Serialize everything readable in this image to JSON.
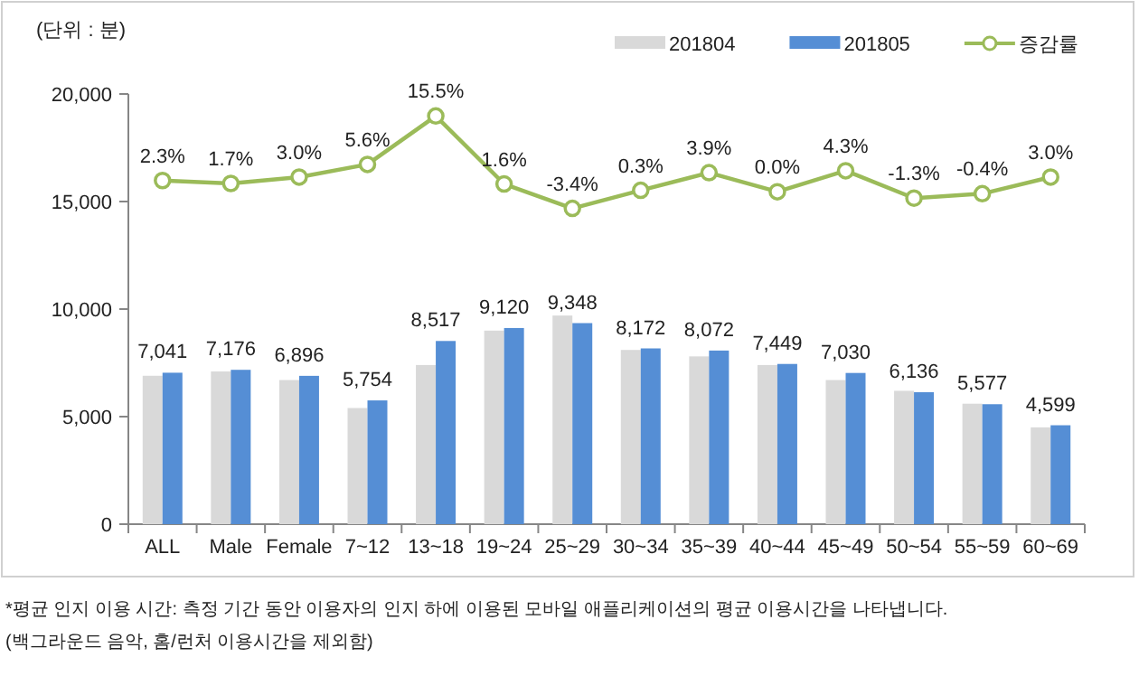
{
  "chart_data": {
    "type": "bar",
    "ylabel": "(단위 : 분)",
    "categories": [
      "ALL",
      "Male",
      "Female",
      "7~12",
      "13~18",
      "19~24",
      "25~29",
      "30~34",
      "35~39",
      "40~44",
      "45~49",
      "50~54",
      "55~59",
      "60~69"
    ],
    "series": [
      {
        "name": "201804",
        "color": "#d9d9d9",
        "values": [
          6900,
          7100,
          6700,
          5400,
          7400,
          9000,
          9700,
          8100,
          7800,
          7400,
          6700,
          6200,
          5600,
          4500
        ]
      },
      {
        "name": "201805",
        "color": "#558ed5",
        "values": [
          7041,
          7176,
          6896,
          5754,
          8517,
          9120,
          9348,
          8172,
          8072,
          7449,
          7030,
          6136,
          5577,
          4599
        ],
        "value_labels": [
          "7,041",
          "7,176",
          "6,896",
          "5,754",
          "8,517",
          "9,120",
          "9,348",
          "8,172",
          "8,072",
          "7,449",
          "7,030",
          "6,136",
          "5,577",
          "4,599"
        ]
      },
      {
        "name": "증감률",
        "type": "line",
        "axis": "y2",
        "color": "#9bbb59",
        "marker": "circle",
        "values": [
          2.3,
          1.7,
          3.0,
          5.6,
          15.5,
          1.6,
          -3.4,
          0.3,
          3.9,
          0.0,
          4.3,
          -1.3,
          -0.4,
          3.0
        ],
        "value_labels": [
          "2.3%",
          "1.7%",
          "3.0%",
          "5.6%",
          "15.5%",
          "1.6%",
          "-3.4%",
          "0.3%",
          "3.9%",
          "0.0%",
          "4.3%",
          "-1.3%",
          "-0.4%",
          "3.0%"
        ]
      }
    ],
    "ylim": [
      0,
      20000
    ],
    "yticks": [
      {
        "value": 0,
        "label": "0"
      },
      {
        "value": 5000,
        "label": "5,000"
      },
      {
        "value": 10000,
        "label": "10,000"
      },
      {
        "value": 15000,
        "label": "15,000"
      },
      {
        "value": 20000,
        "label": "20,000"
      }
    ],
    "y2lim": [
      -68,
      20
    ],
    "tick_labels": "x",
    "grid": false,
    "legend": "top right",
    "annotations": [
      "*평균 인지 이용 시간: 측정 기간 동안 이용자의 인지 하에 이용된 모바일 애플리케이션의 평균 이용시간을 나타냅니다.",
      "(백그라운드 음악, 홈/런처 이용시간을 제외함)"
    ]
  }
}
